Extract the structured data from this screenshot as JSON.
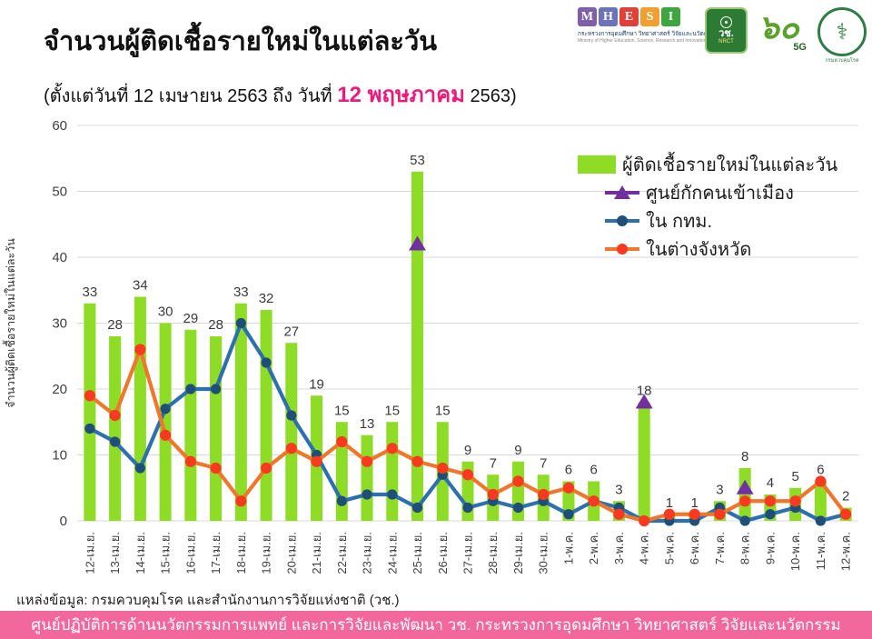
{
  "header": {
    "title": "จำนวนผู้ติดเชื้อรายใหม่ในแต่ละวัน",
    "subtitle_prefix": "(ตั้งแต่วันที่ 12 เมษายน 2563 ถึง วันที่ ",
    "subtitle_highlight": "12 พฤษภาคม",
    "subtitle_suffix": " 2563)"
  },
  "logos": {
    "mhesi": {
      "letters": [
        "M",
        "H",
        "E",
        "S",
        "I"
      ],
      "line1": "กระทรวงการอุดมศึกษา วิทยาศาสตร์ วิจัยและนวัตกรรม",
      "line2": "Ministry of Higher Education, Science, Research and Innovation"
    },
    "nrct": {
      "thai": "วช.",
      "en": "NRCT"
    },
    "anniversary": {
      "numerals": "๖๐",
      "tag": "5G"
    },
    "ddc": {
      "label": "กรมควบคุมโรค"
    }
  },
  "legend": {
    "items": [
      {
        "label": "ผู้ติดเชื้อรายใหม่ในแต่ละวัน",
        "marker": "bar-swatch"
      },
      {
        "label": "ศูนย์กักคนเข้าเมือง",
        "marker": "triangle"
      },
      {
        "label": "ใน กทม.",
        "marker": "line-dot-blue"
      },
      {
        "label": "ในต่างจังหวัด",
        "marker": "line-dot-orange"
      }
    ]
  },
  "chart_data": {
    "type": "bar",
    "subtype": "combo-bar-line-scatter",
    "title": "จำนวนผู้ติดเชื้อรายใหม่ในแต่ละวัน",
    "xlabel": "",
    "ylabel": "จำนวนผู้ติดเชื้อรายใหม่ในแต่ละวัน",
    "ylim": [
      0,
      60
    ],
    "ytick_step": 10,
    "grid": true,
    "legend_position": "top-right",
    "categories": [
      "12-เม.ย.",
      "13-เม.ย.",
      "14-เม.ย.",
      "15-เม.ย.",
      "16-เม.ย.",
      "17-เม.ย.",
      "18-เม.ย.",
      "19-เม.ย.",
      "20-เม.ย.",
      "21-เม.ย.",
      "22-เม.ย.",
      "23-เม.ย.",
      "24-เม.ย.",
      "25-เม.ย.",
      "26-เม.ย.",
      "27-เม.ย.",
      "28-เม.ย.",
      "29-เม.ย.",
      "30-เม.ย.",
      "1-พ.ค.",
      "2-พ.ค.",
      "3-พ.ค.",
      "4-พ.ค.",
      "5-พ.ค.",
      "6-พ.ค.",
      "7-พ.ค.",
      "8-พ.ค.",
      "9-พ.ค.",
      "10-พ.ค.",
      "11-พ.ค.",
      "12-พ.ค."
    ],
    "bars": {
      "name": "ผู้ติดเชื้อรายใหม่ในแต่ละวัน",
      "color": "#8edc26",
      "values": [
        33,
        28,
        34,
        30,
        29,
        28,
        33,
        32,
        27,
        19,
        15,
        13,
        15,
        53,
        15,
        9,
        7,
        9,
        7,
        6,
        6,
        3,
        18,
        1,
        1,
        3,
        8,
        4,
        5,
        6,
        2
      ]
    },
    "lines": [
      {
        "name": "ใน กทม.",
        "color": "#2e6fad",
        "marker_color": "#1f4e79",
        "values": [
          14,
          12,
          8,
          17,
          20,
          20,
          30,
          24,
          16,
          10,
          3,
          4,
          4,
          2,
          7,
          2,
          3,
          2,
          3,
          1,
          3,
          2,
          0,
          0,
          0,
          2,
          0,
          1,
          2,
          0,
          1
        ]
      },
      {
        "name": "ในต่างจังหวัด",
        "color": "#f0762c",
        "marker_color": "#f93a20",
        "values": [
          19,
          16,
          26,
          13,
          9,
          8,
          3,
          8,
          11,
          9,
          12,
          9,
          11,
          9,
          8,
          7,
          4,
          6,
          4,
          5,
          3,
          1,
          0,
          1,
          1,
          1,
          3,
          3,
          3,
          6,
          1
        ]
      }
    ],
    "markers": {
      "name": "ศูนย์กักคนเข้าเมือง",
      "color": "#7030a0",
      "shape": "triangle",
      "points": [
        {
          "category": "25-เม.ย.",
          "value": 42
        },
        {
          "category": "4-พ.ค.",
          "value": 18
        },
        {
          "category": "8-พ.ค.",
          "value": 5
        }
      ]
    },
    "colors": {
      "grid": "#d9d9d9",
      "tick_text": "#3f3f3f",
      "bar_label": "#3b3b3b"
    }
  },
  "footer": {
    "source": "แหล่งข้อมูล: กรมควบคุมโรค และสำนักงานการวิจัยแห่งชาติ (วช.)",
    "banner": "ศูนย์ปฏิบัติการด้านนวัตกรรมการแพทย์ และการวิจัยและพัฒนา วช.   กระทรวงการอุดมศึกษา วิทยาศาสตร์ วิจัยและนวัตกรรม",
    "banner_color": "#f2689c"
  }
}
